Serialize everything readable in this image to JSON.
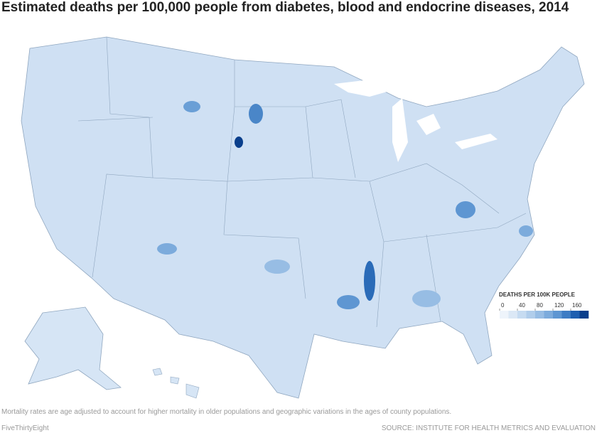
{
  "title": "Estimated deaths per 100,000 people from diabetes, blood and endocrine diseases, 2014",
  "legend": {
    "title": "DEATHS PER 100K PEOPLE",
    "range": [
      0,
      200
    ],
    "ticks": [
      0,
      40,
      80,
      120,
      160
    ],
    "colors": [
      "#eef4fb",
      "#dbe8f6",
      "#c6dbf1",
      "#b0cdeb",
      "#97bde4",
      "#7cabdc",
      "#5e96d2",
      "#3d7cc4",
      "#1e5fb0",
      "#0a3f8c"
    ]
  },
  "footnote": "Mortality rates are age adjusted to account for higher mortality in older populations and geographic variations in the ages of county populations.",
  "brand": "FiveThirtyEight",
  "source": "SOURCE: INSTITUTE FOR HEALTH METRICS AND EVALUATION"
}
